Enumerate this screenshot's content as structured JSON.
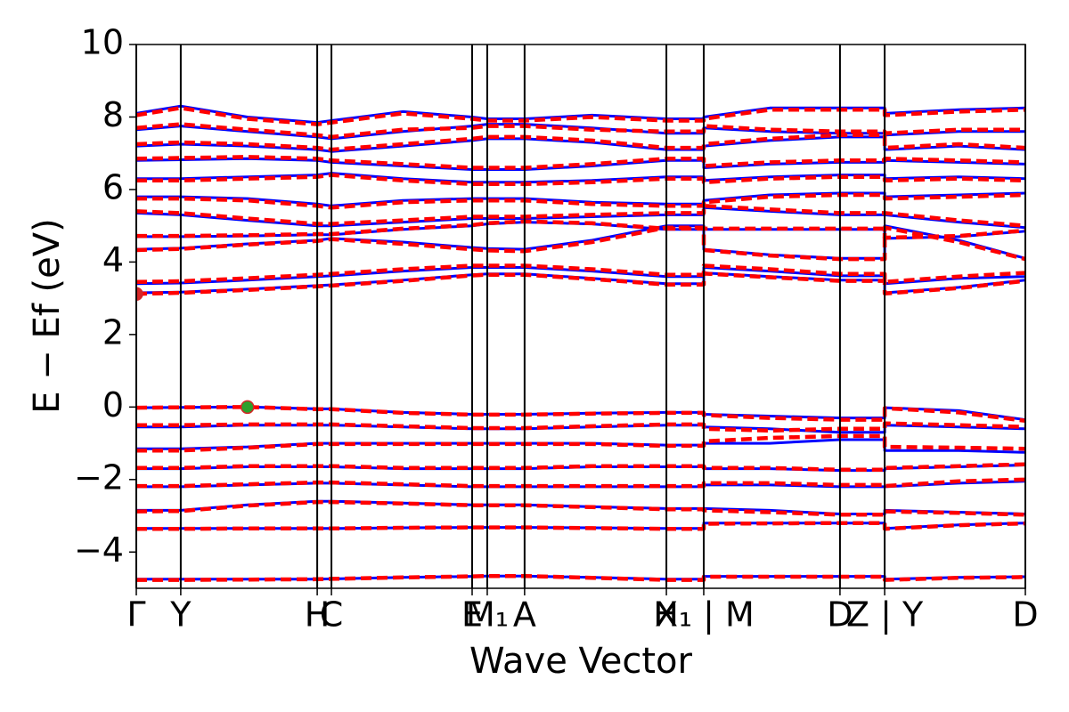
{
  "chart_data": {
    "type": "line",
    "xlabel": "Wave Vector",
    "ylabel": "E − Ef (eV)",
    "xlim": [
      0,
      4.0
    ],
    "ylim": [
      -5,
      10
    ],
    "xticks": [
      {
        "value": 0,
        "label": "Γ"
      },
      {
        "value": 0.2,
        "label": "Y"
      },
      {
        "value": 0.814,
        "label": "H"
      },
      {
        "value": 0.878,
        "label": "C"
      },
      {
        "value": 1.511,
        "label": "E"
      },
      {
        "value": 1.579,
        "label": "M₁"
      },
      {
        "value": 1.747,
        "label": "A"
      },
      {
        "value": 2.385,
        "label": "X"
      },
      {
        "value": 2.553,
        "label": "H₁ | M"
      },
      {
        "value": 3.166,
        "label": "D"
      },
      {
        "value": 3.367,
        "label": "Z | Y"
      },
      {
        "value": 4.0,
        "label": "D"
      }
    ],
    "yticks": [
      {
        "value": -4,
        "label": "−4"
      },
      {
        "value": -2,
        "label": "−2"
      },
      0,
      2,
      4,
      6,
      8,
      10
    ],
    "x": [
      0,
      0.2,
      0.5,
      0.814,
      0.878,
      1.2,
      1.511,
      1.579,
      1.747,
      2.05,
      2.385,
      2.553,
      2.553,
      2.85,
      3.166,
      3.367,
      3.367,
      3.7,
      4.0
    ],
    "series": [
      {
        "color": "#0000ff",
        "linestyle": "solid",
        "bands": [
          [
            -4.75,
            -4.75,
            -4.75,
            -4.75,
            -4.74,
            -4.7,
            -4.67,
            -4.66,
            -4.66,
            -4.7,
            -4.75,
            -4.75,
            -4.67,
            -4.67,
            -4.67,
            -4.67,
            -4.75,
            -4.7,
            -4.68
          ],
          [
            -3.35,
            -3.35,
            -3.35,
            -3.35,
            -3.35,
            -3.33,
            -3.32,
            -3.32,
            -3.32,
            -3.33,
            -3.35,
            -3.35,
            -3.2,
            -3.2,
            -3.2,
            -3.2,
            -3.35,
            -3.25,
            -3.2
          ],
          [
            -2.85,
            -2.85,
            -2.7,
            -2.6,
            -2.6,
            -2.65,
            -2.7,
            -2.7,
            -2.7,
            -2.75,
            -2.8,
            -2.8,
            -2.8,
            -2.85,
            -2.95,
            -2.95,
            -2.85,
            -2.9,
            -2.95
          ],
          [
            -2.2,
            -2.2,
            -2.15,
            -2.1,
            -2.1,
            -2.15,
            -2.2,
            -2.2,
            -2.2,
            -2.2,
            -2.2,
            -2.2,
            -2.15,
            -2.15,
            -2.2,
            -2.2,
            -2.2,
            -2.1,
            -2.05
          ],
          [
            -1.7,
            -1.7,
            -1.65,
            -1.65,
            -1.65,
            -1.7,
            -1.7,
            -1.7,
            -1.7,
            -1.65,
            -1.65,
            -1.65,
            -1.7,
            -1.7,
            -1.75,
            -1.75,
            -1.7,
            -1.65,
            -1.6
          ],
          [
            -1.15,
            -1.15,
            -1.1,
            -1.0,
            -1.0,
            -1.0,
            -1.0,
            -1.0,
            -1.0,
            -1.0,
            -1.05,
            -1.05,
            -1.0,
            -1.0,
            -0.9,
            -0.9,
            -1.2,
            -1.2,
            -1.25
          ],
          [
            -0.55,
            -0.55,
            -0.5,
            -0.5,
            -0.5,
            -0.55,
            -0.6,
            -0.6,
            -0.6,
            -0.55,
            -0.5,
            -0.5,
            -0.55,
            -0.6,
            -0.7,
            -0.7,
            -0.5,
            -0.55,
            -0.6
          ],
          [
            -0.02,
            -0.01,
            0,
            -0.05,
            -0.05,
            -0.15,
            -0.2,
            -0.2,
            -0.2,
            -0.17,
            -0.15,
            -0.15,
            -0.2,
            -0.25,
            -0.3,
            -0.3,
            -0.02,
            -0.1,
            -0.35
          ],
          [
            3.15,
            3.17,
            3.25,
            3.35,
            3.37,
            3.5,
            3.65,
            3.67,
            3.67,
            3.55,
            3.4,
            3.4,
            3.7,
            3.6,
            3.5,
            3.5,
            3.15,
            3.3,
            3.5
          ],
          [
            3.4,
            3.42,
            3.5,
            3.6,
            3.62,
            3.75,
            3.85,
            3.85,
            3.85,
            3.75,
            3.6,
            3.6,
            3.85,
            3.75,
            3.62,
            3.62,
            3.4,
            3.55,
            3.6
          ],
          [
            4.35,
            4.38,
            4.5,
            4.6,
            4.65,
            4.55,
            4.4,
            4.37,
            4.35,
            4.6,
            5.0,
            5.0,
            4.35,
            4.2,
            4.1,
            4.1,
            5.0,
            4.6,
            4.1
          ],
          [
            4.7,
            4.7,
            4.72,
            4.75,
            4.75,
            4.9,
            5.0,
            5.05,
            5.1,
            5.05,
            4.9,
            4.9,
            4.9,
            4.9,
            4.9,
            4.9,
            4.65,
            4.7,
            4.85
          ],
          [
            5.35,
            5.3,
            5.15,
            5.0,
            5.0,
            5.1,
            5.2,
            5.2,
            5.2,
            5.25,
            5.3,
            5.3,
            5.5,
            5.4,
            5.3,
            5.3,
            5.3,
            5.1,
            4.95
          ],
          [
            5.8,
            5.8,
            5.75,
            5.6,
            5.55,
            5.7,
            5.75,
            5.75,
            5.75,
            5.65,
            5.6,
            5.6,
            5.7,
            5.85,
            5.9,
            5.9,
            5.8,
            5.85,
            5.9
          ],
          [
            6.3,
            6.3,
            6.35,
            6.4,
            6.45,
            6.3,
            6.2,
            6.2,
            6.2,
            6.25,
            6.35,
            6.35,
            6.25,
            6.35,
            6.4,
            6.4,
            6.3,
            6.35,
            6.3
          ],
          [
            6.8,
            6.82,
            6.85,
            6.8,
            6.75,
            6.65,
            6.55,
            6.55,
            6.55,
            6.65,
            6.8,
            6.8,
            6.6,
            6.7,
            6.75,
            6.75,
            6.8,
            6.75,
            6.7
          ],
          [
            7.2,
            7.25,
            7.2,
            7.1,
            7.05,
            7.2,
            7.35,
            7.4,
            7.4,
            7.3,
            7.1,
            7.1,
            7.2,
            7.35,
            7.45,
            7.45,
            7.1,
            7.2,
            7.1
          ],
          [
            7.65,
            7.75,
            7.6,
            7.45,
            7.4,
            7.6,
            7.75,
            7.8,
            7.8,
            7.7,
            7.55,
            7.55,
            7.7,
            7.6,
            7.55,
            7.55,
            7.5,
            7.6,
            7.6
          ],
          [
            8.1,
            8.3,
            8.0,
            7.85,
            7.9,
            8.15,
            8.0,
            7.95,
            7.95,
            8.05,
            7.95,
            7.95,
            8.0,
            8.25,
            8.25,
            8.25,
            8.1,
            8.2,
            8.25
          ]
        ]
      },
      {
        "color": "#ff0000",
        "linestyle": "dashed",
        "bands": [
          [
            -4.77,
            -4.77,
            -4.76,
            -4.75,
            -4.74,
            -4.7,
            -4.67,
            -4.66,
            -4.66,
            -4.71,
            -4.77,
            -4.77,
            -4.68,
            -4.68,
            -4.68,
            -4.68,
            -4.77,
            -4.71,
            -4.69
          ],
          [
            -3.36,
            -3.36,
            -3.35,
            -3.35,
            -3.35,
            -3.33,
            -3.32,
            -3.32,
            -3.32,
            -3.34,
            -3.36,
            -3.36,
            -3.22,
            -3.21,
            -3.2,
            -3.2,
            -3.36,
            -3.26,
            -3.21
          ],
          [
            -2.88,
            -2.87,
            -2.72,
            -2.62,
            -2.62,
            -2.66,
            -2.71,
            -2.71,
            -2.71,
            -2.76,
            -2.82,
            -2.82,
            -2.85,
            -2.9,
            -2.97,
            -2.97,
            -2.88,
            -2.92,
            -2.97
          ],
          [
            -2.18,
            -2.18,
            -2.13,
            -2.08,
            -2.08,
            -2.13,
            -2.18,
            -2.18,
            -2.18,
            -2.18,
            -2.18,
            -2.18,
            -2.1,
            -2.1,
            -2.15,
            -2.15,
            -2.18,
            -2.05,
            -2.0
          ],
          [
            -1.68,
            -1.68,
            -1.63,
            -1.63,
            -1.63,
            -1.68,
            -1.68,
            -1.68,
            -1.68,
            -1.63,
            -1.63,
            -1.63,
            -1.68,
            -1.68,
            -1.73,
            -1.73,
            -1.68,
            -1.63,
            -1.58
          ],
          [
            -1.2,
            -1.2,
            -1.12,
            -1.02,
            -1.02,
            -1.02,
            -1.02,
            -1.02,
            -1.02,
            -1.02,
            -1.07,
            -1.07,
            -0.95,
            -0.85,
            -0.8,
            -0.8,
            -1.1,
            -1.12,
            -1.15
          ],
          [
            -0.5,
            -0.5,
            -0.48,
            -0.48,
            -0.48,
            -0.53,
            -0.58,
            -0.58,
            -0.58,
            -0.53,
            -0.48,
            -0.48,
            -0.6,
            -0.65,
            -0.6,
            -0.6,
            -0.45,
            -0.5,
            -0.55
          ],
          [
            -0.02,
            -0.01,
            0,
            -0.06,
            -0.06,
            -0.16,
            -0.21,
            -0.21,
            -0.21,
            -0.18,
            -0.16,
            -0.16,
            -0.22,
            -0.3,
            -0.35,
            -0.35,
            -0.03,
            -0.15,
            -0.38
          ],
          [
            3.12,
            3.15,
            3.23,
            3.33,
            3.35,
            3.48,
            3.63,
            3.65,
            3.65,
            3.53,
            3.38,
            3.38,
            3.68,
            3.58,
            3.48,
            3.48,
            3.13,
            3.28,
            3.48
          ],
          [
            3.45,
            3.47,
            3.55,
            3.65,
            3.67,
            3.8,
            3.9,
            3.9,
            3.9,
            3.8,
            3.65,
            3.65,
            3.9,
            3.8,
            3.67,
            3.67,
            3.45,
            3.6,
            3.7
          ],
          [
            4.33,
            4.36,
            4.48,
            4.58,
            4.63,
            4.5,
            4.35,
            4.32,
            4.3,
            4.55,
            4.95,
            4.95,
            4.33,
            4.18,
            4.08,
            4.08,
            4.95,
            4.55,
            4.08
          ],
          [
            4.72,
            4.72,
            4.74,
            4.77,
            4.77,
            4.92,
            5.02,
            5.07,
            5.12,
            5.07,
            4.92,
            4.92,
            4.92,
            4.92,
            4.92,
            4.92,
            4.67,
            4.72,
            4.87
          ],
          [
            5.4,
            5.35,
            5.2,
            5.05,
            5.05,
            5.15,
            5.25,
            5.25,
            5.25,
            5.3,
            5.35,
            5.35,
            5.55,
            5.45,
            5.35,
            5.35,
            5.35,
            5.15,
            5.0
          ],
          [
            5.75,
            5.75,
            5.7,
            5.55,
            5.5,
            5.65,
            5.7,
            5.7,
            5.7,
            5.6,
            5.55,
            5.55,
            5.65,
            5.8,
            5.85,
            5.85,
            5.75,
            5.8,
            5.85
          ],
          [
            6.25,
            6.25,
            6.3,
            6.35,
            6.4,
            6.25,
            6.15,
            6.15,
            6.15,
            6.2,
            6.3,
            6.3,
            6.2,
            6.3,
            6.35,
            6.35,
            6.25,
            6.3,
            6.25
          ],
          [
            6.85,
            6.87,
            6.9,
            6.85,
            6.8,
            6.7,
            6.6,
            6.6,
            6.6,
            6.7,
            6.85,
            6.85,
            6.65,
            6.75,
            6.8,
            6.8,
            6.85,
            6.8,
            6.75
          ],
          [
            7.25,
            7.3,
            7.25,
            7.15,
            7.1,
            7.25,
            7.4,
            7.45,
            7.45,
            7.35,
            7.15,
            7.15,
            7.25,
            7.4,
            7.5,
            7.5,
            7.15,
            7.25,
            7.15
          ],
          [
            7.7,
            7.8,
            7.65,
            7.5,
            7.45,
            7.65,
            7.7,
            7.75,
            7.75,
            7.65,
            7.6,
            7.6,
            7.75,
            7.65,
            7.6,
            7.6,
            7.55,
            7.65,
            7.65
          ],
          [
            8.05,
            8.25,
            7.95,
            7.8,
            7.85,
            8.1,
            7.95,
            7.9,
            7.9,
            8.0,
            7.9,
            7.9,
            7.95,
            8.2,
            8.2,
            8.2,
            8.05,
            8.15,
            8.2
          ]
        ]
      }
    ],
    "markers": [
      {
        "x": 0,
        "y": 3.12,
        "color": "#d62728"
      },
      {
        "x": 0.5,
        "y": 0,
        "color": "#2ca02c"
      }
    ]
  }
}
